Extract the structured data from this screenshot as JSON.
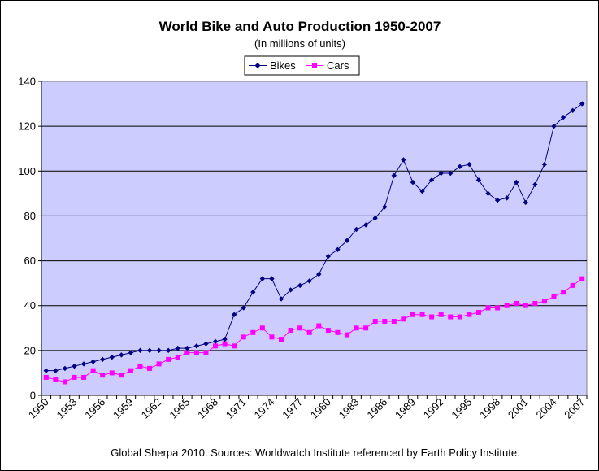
{
  "chart_data": {
    "type": "line",
    "title": "World Bike and Auto Production 1950-2007",
    "subtitle": "(In millions of units)",
    "source": "Global Sherpa 2010. Sources: Worldwatch Institute referenced by Earth Policy Institute.",
    "xlabel": "",
    "ylabel": "",
    "ylim": [
      0,
      140
    ],
    "y_ticks": [
      0,
      20,
      40,
      60,
      80,
      100,
      120,
      140
    ],
    "x_tick_labels": [
      "1950",
      "1953",
      "1956",
      "1959",
      "1962",
      "1965",
      "1968",
      "1971",
      "1974",
      "1977",
      "1980",
      "1983",
      "1986",
      "1989",
      "1992",
      "1995",
      "1998",
      "2001",
      "2004",
      "2007"
    ],
    "grid": "horizontal",
    "legend_position": "top-center",
    "plot_background": "#ccccff",
    "x": [
      1950,
      1951,
      1952,
      1953,
      1954,
      1955,
      1956,
      1957,
      1958,
      1959,
      1960,
      1961,
      1962,
      1963,
      1964,
      1965,
      1966,
      1967,
      1968,
      1969,
      1970,
      1971,
      1972,
      1973,
      1974,
      1975,
      1976,
      1977,
      1978,
      1979,
      1980,
      1981,
      1982,
      1983,
      1984,
      1985,
      1986,
      1987,
      1988,
      1989,
      1990,
      1991,
      1992,
      1993,
      1994,
      1995,
      1996,
      1997,
      1998,
      1999,
      2000,
      2001,
      2002,
      2003,
      2004,
      2005,
      2006,
      2007
    ],
    "series": [
      {
        "name": "Bikes",
        "color": "#000080",
        "marker": "diamond",
        "values": [
          11,
          11,
          12,
          13,
          14,
          15,
          16,
          17,
          18,
          19,
          20,
          20,
          20,
          20,
          21,
          21,
          22,
          23,
          24,
          25,
          36,
          39,
          46,
          52,
          52,
          43,
          47,
          49,
          51,
          54,
          62,
          65,
          69,
          74,
          76,
          79,
          84,
          98,
          105,
          95,
          91,
          96,
          99,
          99,
          102,
          103,
          96,
          90,
          87,
          88,
          95,
          86,
          94,
          103,
          120,
          124,
          127,
          130
        ]
      },
      {
        "name": "Cars",
        "color": "#ff00ff",
        "marker": "square",
        "values": [
          8,
          7,
          6,
          8,
          8,
          11,
          9,
          10,
          9,
          11,
          13,
          12,
          14,
          16,
          17,
          19,
          19,
          19,
          22,
          23,
          22,
          26,
          28,
          30,
          26,
          25,
          29,
          30,
          28,
          31,
          29,
          28,
          27,
          30,
          30,
          33,
          33,
          33,
          34,
          36,
          36,
          35,
          36,
          35,
          35,
          36,
          37,
          39,
          39,
          40,
          41,
          40,
          41,
          42,
          44,
          46,
          49,
          52
        ]
      }
    ]
  }
}
